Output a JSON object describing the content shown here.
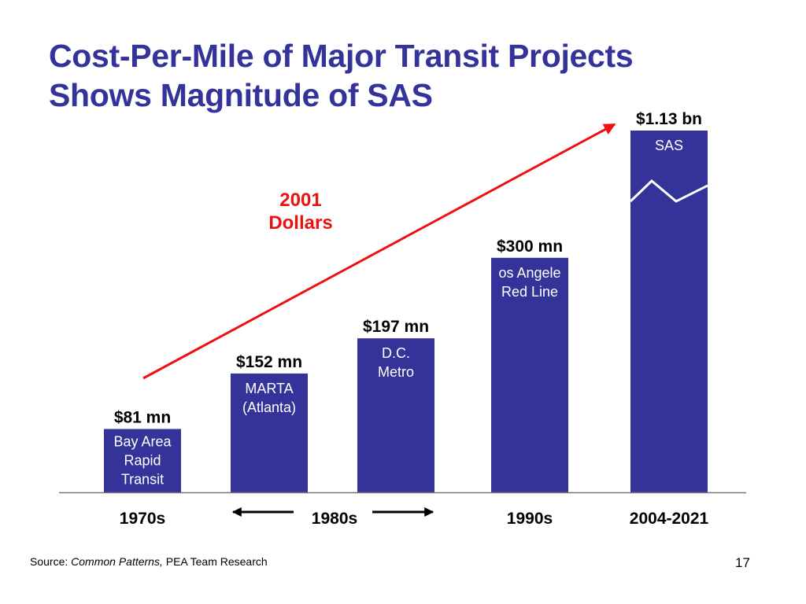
{
  "title": {
    "line1": "Cost-Per-Mile of Major Transit Projects",
    "line2": "Shows Magnitude of SAS"
  },
  "chart_data": {
    "type": "bar",
    "title": "Cost-Per-Mile of Major Transit Projects Shows Magnitude of SAS",
    "xlabel": "",
    "ylabel": "",
    "unit": "$ million per mile",
    "categories": [
      "Bay Area Rapid Transit",
      "MARTA (Atlanta)",
      "D.C. Metro",
      "Los Angeles Red Line",
      "SAS"
    ],
    "bar_labels": [
      [
        "Bay Area",
        "Rapid",
        "Transit"
      ],
      [
        "MARTA",
        "(Atlanta)"
      ],
      [
        "D.C.",
        "Metro"
      ],
      [
        "os Angele",
        "Red Line"
      ],
      [
        "SAS"
      ]
    ],
    "values": [
      81,
      152,
      197,
      300,
      1130
    ],
    "value_labels": [
      "$81 mn",
      "$152 mn",
      "$197 mn",
      "$300 mn",
      "$1.13 bn"
    ],
    "axis_breaks": [
      4
    ],
    "period_labels": [
      "1970s",
      "1980s",
      "1990s",
      "2004-2021"
    ],
    "trend_annotation": [
      "2001",
      "Dollars"
    ],
    "grid": false,
    "legend": "none",
    "colors": {
      "bar": "#333399",
      "bar_text": "#ffffff",
      "trend_arrow": "#ee1111",
      "annotation": "#ee1111",
      "title": "#333399"
    }
  },
  "footer": {
    "source_label": "Source: ",
    "source_title": "Common Patterns,",
    "source_rest": " PEA Team Research",
    "page_number": "17"
  }
}
